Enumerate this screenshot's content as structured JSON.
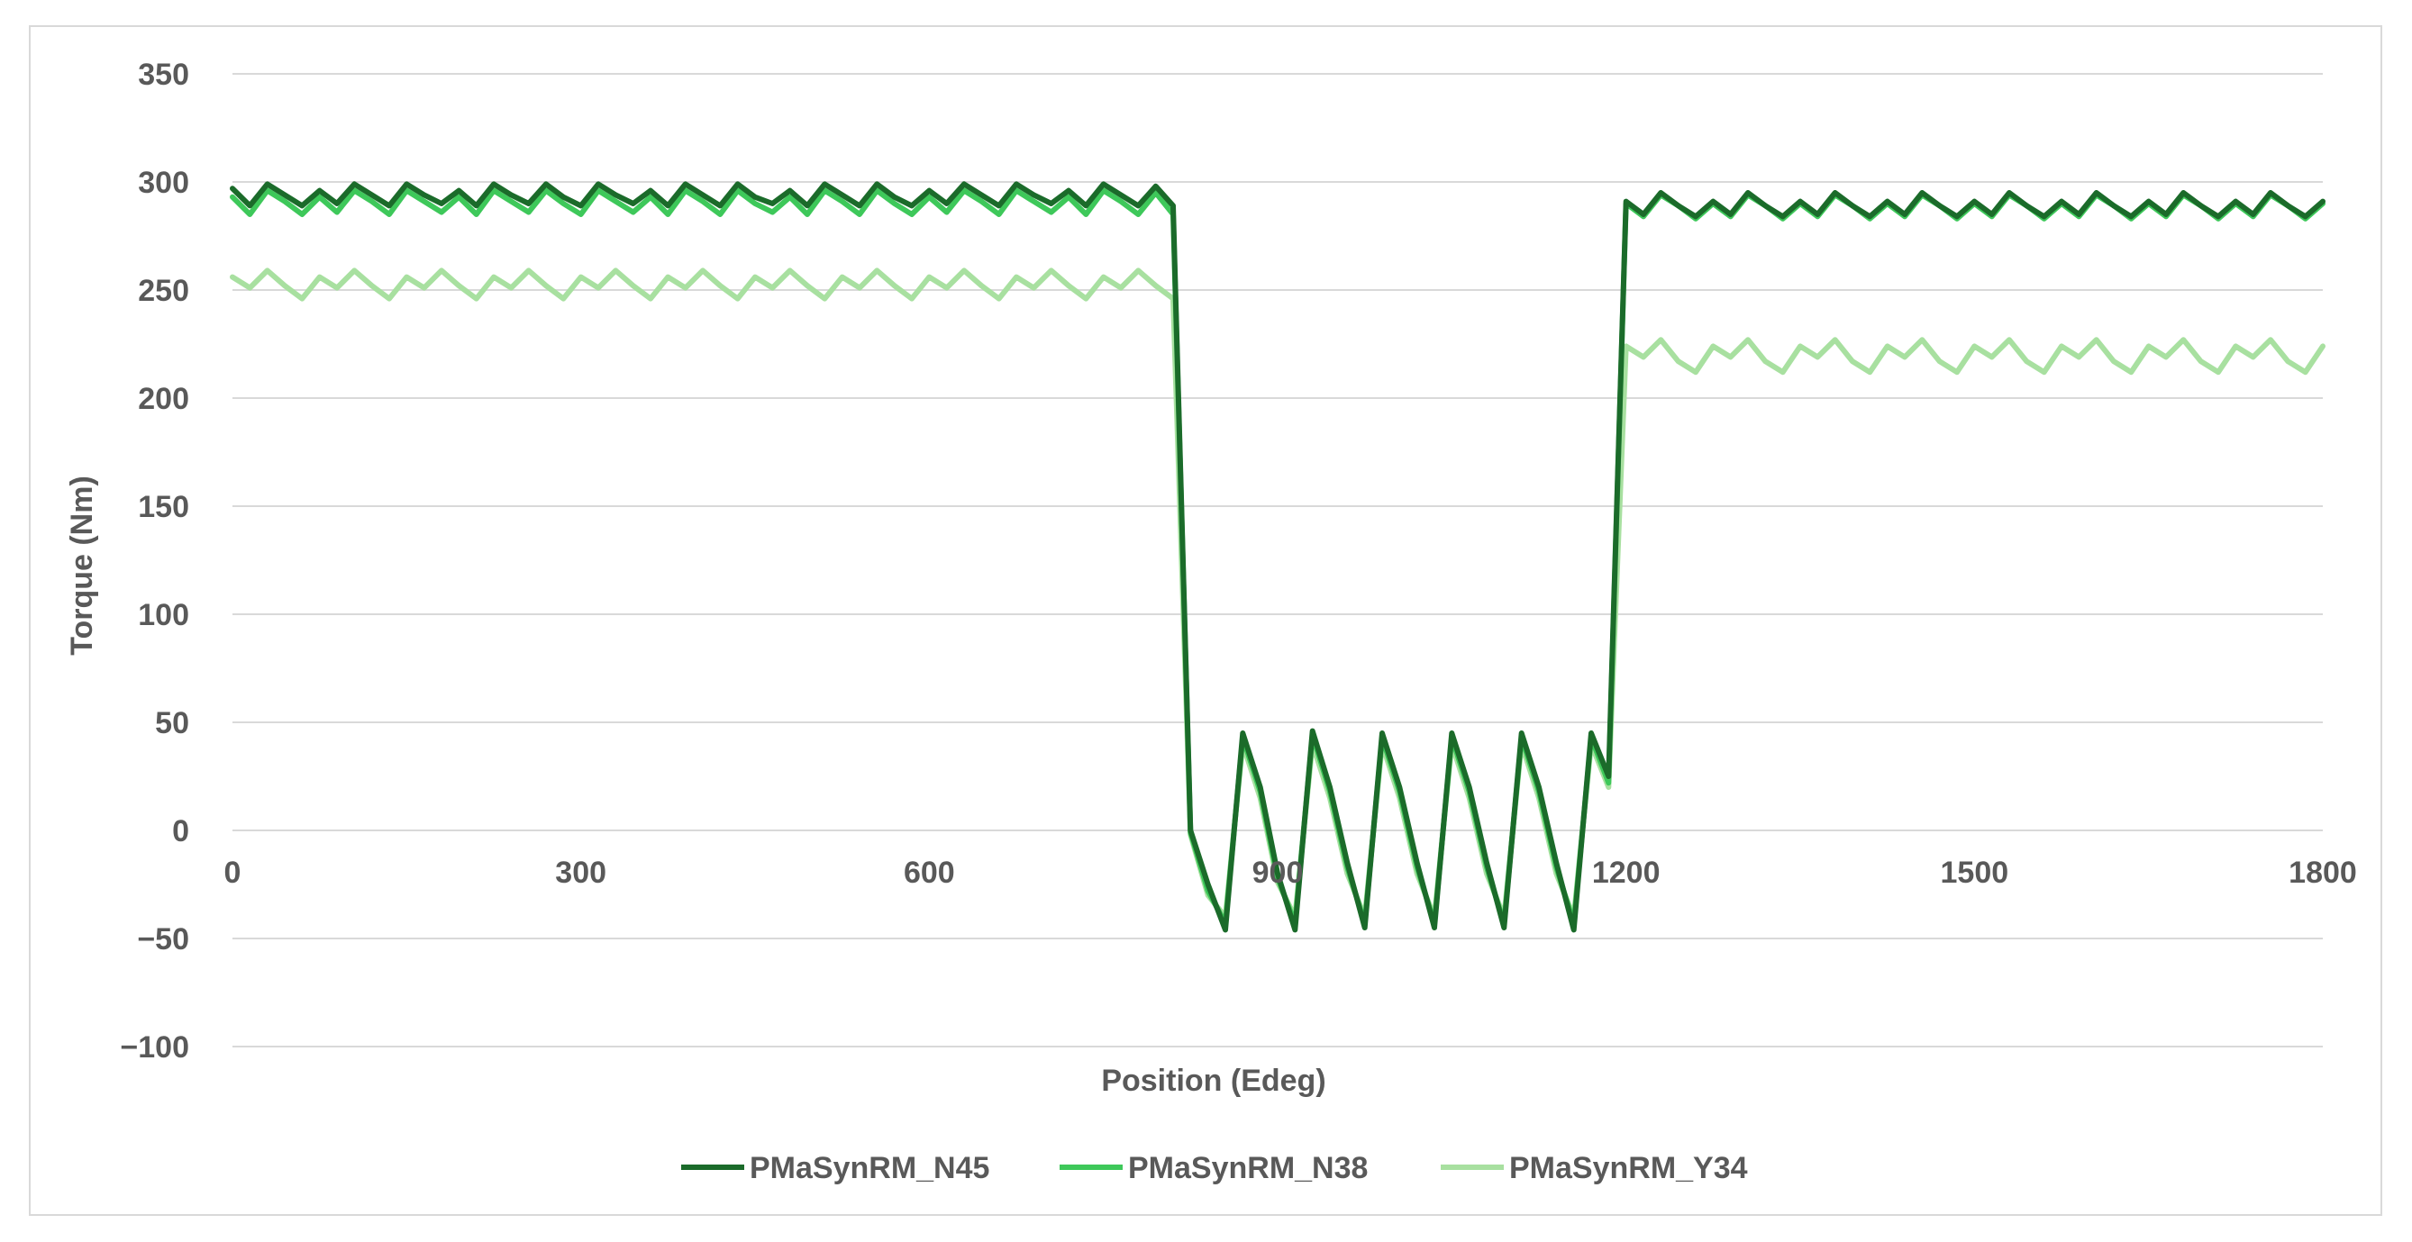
{
  "chart_data": {
    "type": "line",
    "title": "",
    "xlabel": "Position (Edeg)",
    "ylabel": "Torque (Nm)",
    "xlim": [
      0,
      1800
    ],
    "ylim": [
      -100,
      350
    ],
    "x_ticks": [
      0,
      300,
      600,
      900,
      1200,
      1500,
      1800
    ],
    "y_ticks": [
      -100,
      -50,
      0,
      50,
      100,
      150,
      200,
      250,
      300,
      350
    ],
    "x_tick_labels": [
      "0",
      "300",
      "600",
      "900",
      "1200",
      "1500",
      "1800"
    ],
    "y_tick_labels": [
      "−100",
      "−50",
      "0",
      "50",
      "100",
      "150",
      "200",
      "250",
      "300",
      "350"
    ],
    "grid": "horizontal",
    "legend_position": "bottom",
    "series": [
      {
        "name": "PMaSynRM_N45",
        "color": "#1b6b2a",
        "x": [
          0,
          15,
          30,
          45,
          60,
          75,
          90,
          105,
          120,
          135,
          150,
          165,
          180,
          195,
          210,
          225,
          240,
          255,
          270,
          285,
          300,
          315,
          330,
          345,
          360,
          375,
          390,
          405,
          420,
          435,
          450,
          465,
          480,
          495,
          510,
          525,
          540,
          555,
          570,
          585,
          600,
          615,
          630,
          645,
          660,
          675,
          690,
          705,
          720,
          735,
          750,
          765,
          780,
          795,
          810,
          825,
          840,
          855,
          870,
          885,
          900,
          915,
          930,
          945,
          960,
          975,
          990,
          1005,
          1020,
          1035,
          1050,
          1065,
          1080,
          1095,
          1110,
          1125,
          1140,
          1155,
          1170,
          1185,
          1200,
          1215,
          1230,
          1245,
          1260,
          1275,
          1290,
          1305,
          1320,
          1335,
          1350,
          1365,
          1380,
          1395,
          1410,
          1425,
          1440,
          1455,
          1470,
          1485,
          1500,
          1515,
          1530,
          1545,
          1560,
          1575,
          1590,
          1605,
          1620,
          1635,
          1650,
          1665,
          1680,
          1695,
          1710,
          1725,
          1740,
          1755,
          1770,
          1785,
          1800
        ],
        "y": [
          297,
          289,
          299,
          294,
          289,
          296,
          290,
          299,
          294,
          289,
          299,
          294,
          290,
          296,
          289,
          299,
          294,
          290,
          299,
          293,
          289,
          299,
          294,
          290,
          296,
          289,
          299,
          294,
          289,
          299,
          293,
          290,
          296,
          289,
          299,
          294,
          289,
          299,
          293,
          289,
          296,
          290,
          299,
          294,
          289,
          299,
          294,
          290,
          296,
          289,
          299,
          294,
          289,
          298,
          289,
          0,
          -25,
          -46,
          45,
          20,
          -20,
          -46,
          46,
          20,
          -15,
          -45,
          45,
          20,
          -15,
          -45,
          45,
          20,
          -15,
          -45,
          45,
          20,
          -15,
          -46,
          45,
          25,
          291,
          285,
          295,
          289,
          284,
          291,
          285,
          295,
          289,
          284,
          291,
          285,
          295,
          289,
          284,
          291,
          285,
          295,
          289,
          284,
          291,
          285,
          295,
          289,
          284,
          291,
          285,
          295,
          289,
          284,
          291,
          285,
          295,
          289,
          284,
          291,
          285,
          295,
          289,
          284,
          291
        ]
      },
      {
        "name": "PMaSynRM_N38",
        "color": "#3ec85a",
        "x": [
          0,
          15,
          30,
          45,
          60,
          75,
          90,
          105,
          120,
          135,
          150,
          165,
          180,
          195,
          210,
          225,
          240,
          255,
          270,
          285,
          300,
          315,
          330,
          345,
          360,
          375,
          390,
          405,
          420,
          435,
          450,
          465,
          480,
          495,
          510,
          525,
          540,
          555,
          570,
          585,
          600,
          615,
          630,
          645,
          660,
          675,
          690,
          705,
          720,
          735,
          750,
          765,
          780,
          795,
          810,
          825,
          840,
          855,
          870,
          885,
          900,
          915,
          930,
          945,
          960,
          975,
          990,
          1005,
          1020,
          1035,
          1050,
          1065,
          1080,
          1095,
          1110,
          1125,
          1140,
          1155,
          1170,
          1185,
          1200,
          1215,
          1230,
          1245,
          1260,
          1275,
          1290,
          1305,
          1320,
          1335,
          1350,
          1365,
          1380,
          1395,
          1410,
          1425,
          1440,
          1455,
          1470,
          1485,
          1500,
          1515,
          1530,
          1545,
          1560,
          1575,
          1590,
          1605,
          1620,
          1635,
          1650,
          1665,
          1680,
          1695,
          1710,
          1725,
          1740,
          1755,
          1770,
          1785,
          1800
        ],
        "y": [
          293,
          285,
          296,
          291,
          285,
          293,
          286,
          296,
          291,
          285,
          296,
          291,
          286,
          293,
          285,
          296,
          291,
          286,
          296,
          290,
          285,
          296,
          291,
          286,
          293,
          285,
          296,
          291,
          285,
          296,
          290,
          286,
          293,
          285,
          296,
          291,
          285,
          296,
          290,
          285,
          293,
          286,
          296,
          291,
          285,
          296,
          291,
          286,
          293,
          285,
          296,
          291,
          285,
          295,
          285,
          -1,
          -28,
          -43,
          43,
          18,
          -22,
          -43,
          44,
          18,
          -17,
          -43,
          43,
          18,
          -17,
          -43,
          43,
          18,
          -17,
          -43,
          43,
          18,
          -17,
          -43,
          43,
          22,
          290,
          284,
          294,
          289,
          283,
          290,
          284,
          294,
          289,
          283,
          290,
          284,
          294,
          289,
          283,
          290,
          284,
          294,
          289,
          283,
          290,
          284,
          294,
          289,
          283,
          290,
          284,
          294,
          289,
          283,
          290,
          284,
          294,
          289,
          283,
          290,
          284,
          294,
          289,
          283,
          290
        ]
      },
      {
        "name": "PMaSynRM_Y34",
        "color": "#a8e0a0",
        "x": [
          0,
          15,
          30,
          45,
          60,
          75,
          90,
          105,
          120,
          135,
          150,
          165,
          180,
          195,
          210,
          225,
          240,
          255,
          270,
          285,
          300,
          315,
          330,
          345,
          360,
          375,
          390,
          405,
          420,
          435,
          450,
          465,
          480,
          495,
          510,
          525,
          540,
          555,
          570,
          585,
          600,
          615,
          630,
          645,
          660,
          675,
          690,
          705,
          720,
          735,
          750,
          765,
          780,
          795,
          810,
          825,
          840,
          855,
          870,
          885,
          900,
          915,
          930,
          945,
          960,
          975,
          990,
          1005,
          1020,
          1035,
          1050,
          1065,
          1080,
          1095,
          1110,
          1125,
          1140,
          1155,
          1170,
          1185,
          1200,
          1215,
          1230,
          1245,
          1260,
          1275,
          1290,
          1305,
          1320,
          1335,
          1350,
          1365,
          1380,
          1395,
          1410,
          1425,
          1440,
          1455,
          1470,
          1485,
          1500,
          1515,
          1530,
          1545,
          1560,
          1575,
          1590,
          1605,
          1620,
          1635,
          1650,
          1665,
          1680,
          1695,
          1710,
          1725,
          1740,
          1755,
          1770,
          1785,
          1800
        ],
        "y": [
          256,
          251,
          259,
          252,
          246,
          256,
          251,
          259,
          252,
          246,
          256,
          251,
          259,
          252,
          246,
          256,
          251,
          259,
          252,
          246,
          256,
          251,
          259,
          252,
          246,
          256,
          251,
          259,
          252,
          246,
          256,
          251,
          259,
          252,
          246,
          256,
          251,
          259,
          252,
          246,
          256,
          251,
          259,
          252,
          246,
          256,
          251,
          259,
          252,
          246,
          256,
          251,
          259,
          252,
          246,
          -2,
          -30,
          -40,
          40,
          15,
          -24,
          -40,
          40,
          15,
          -20,
          -40,
          40,
          15,
          -20,
          -40,
          40,
          15,
          -20,
          -40,
          40,
          15,
          -20,
          -40,
          40,
          20,
          224,
          219,
          227,
          217,
          212,
          224,
          219,
          227,
          217,
          212,
          224,
          219,
          227,
          217,
          212,
          224,
          219,
          227,
          217,
          212,
          224,
          219,
          227,
          217,
          212,
          224,
          219,
          227,
          217,
          212,
          224,
          219,
          227,
          217,
          212,
          224,
          219,
          227,
          217,
          212,
          224
        ]
      }
    ]
  }
}
